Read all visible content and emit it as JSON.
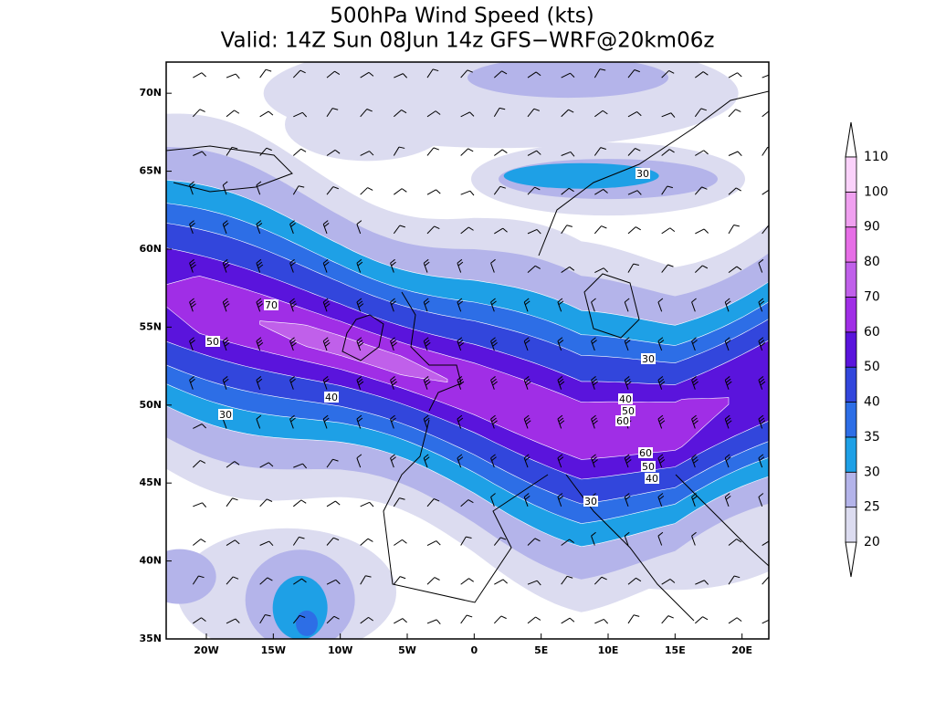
{
  "title": [
    "500hPa Wind Speed (kts)",
    "Valid: 14Z Sun 08Jun 14z GFS−WRF@20km06z"
  ],
  "map": {
    "lon_ticks": [
      {
        "value": -20,
        "label": "20W"
      },
      {
        "value": -15,
        "label": "15W"
      },
      {
        "value": -10,
        "label": "10W"
      },
      {
        "value": -5,
        "label": "5W"
      },
      0,
      {
        "value": 5,
        "label": "5E"
      },
      {
        "value": 10,
        "label": "10E"
      },
      {
        "value": 15,
        "label": "15E"
      },
      {
        "value": 20,
        "label": "20E"
      }
    ],
    "lat_ticks": [
      {
        "value": 35,
        "label": "35N"
      },
      {
        "value": 40,
        "label": "40N"
      },
      {
        "value": 45,
        "label": "45N"
      },
      {
        "value": 50,
        "label": "50N"
      },
      {
        "value": 55,
        "label": "55N"
      },
      {
        "value": 60,
        "label": "60N"
      },
      {
        "value": 65,
        "label": "65N"
      },
      {
        "value": 70,
        "label": "70N"
      }
    ],
    "lonlim": [
      -23,
      22
    ],
    "latlim": [
      35,
      72
    ],
    "contour_labels": [
      70,
      50,
      40,
      30,
      30,
      30,
      40,
      50,
      60,
      60,
      50,
      40,
      30
    ]
  },
  "colorbar": {
    "levels": [
      20,
      25,
      30,
      35,
      40,
      50,
      60,
      70,
      80,
      90,
      100,
      110
    ],
    "colors": [
      "#dcdcf0",
      "#b4b4ea",
      "#1ea0e6",
      "#2d6ee6",
      "#3246dc",
      "#5a14dc",
      "#a02ee6",
      "#c060ea",
      "#e66ee6",
      "#f0a0f0",
      "#fad2fa"
    ]
  }
}
